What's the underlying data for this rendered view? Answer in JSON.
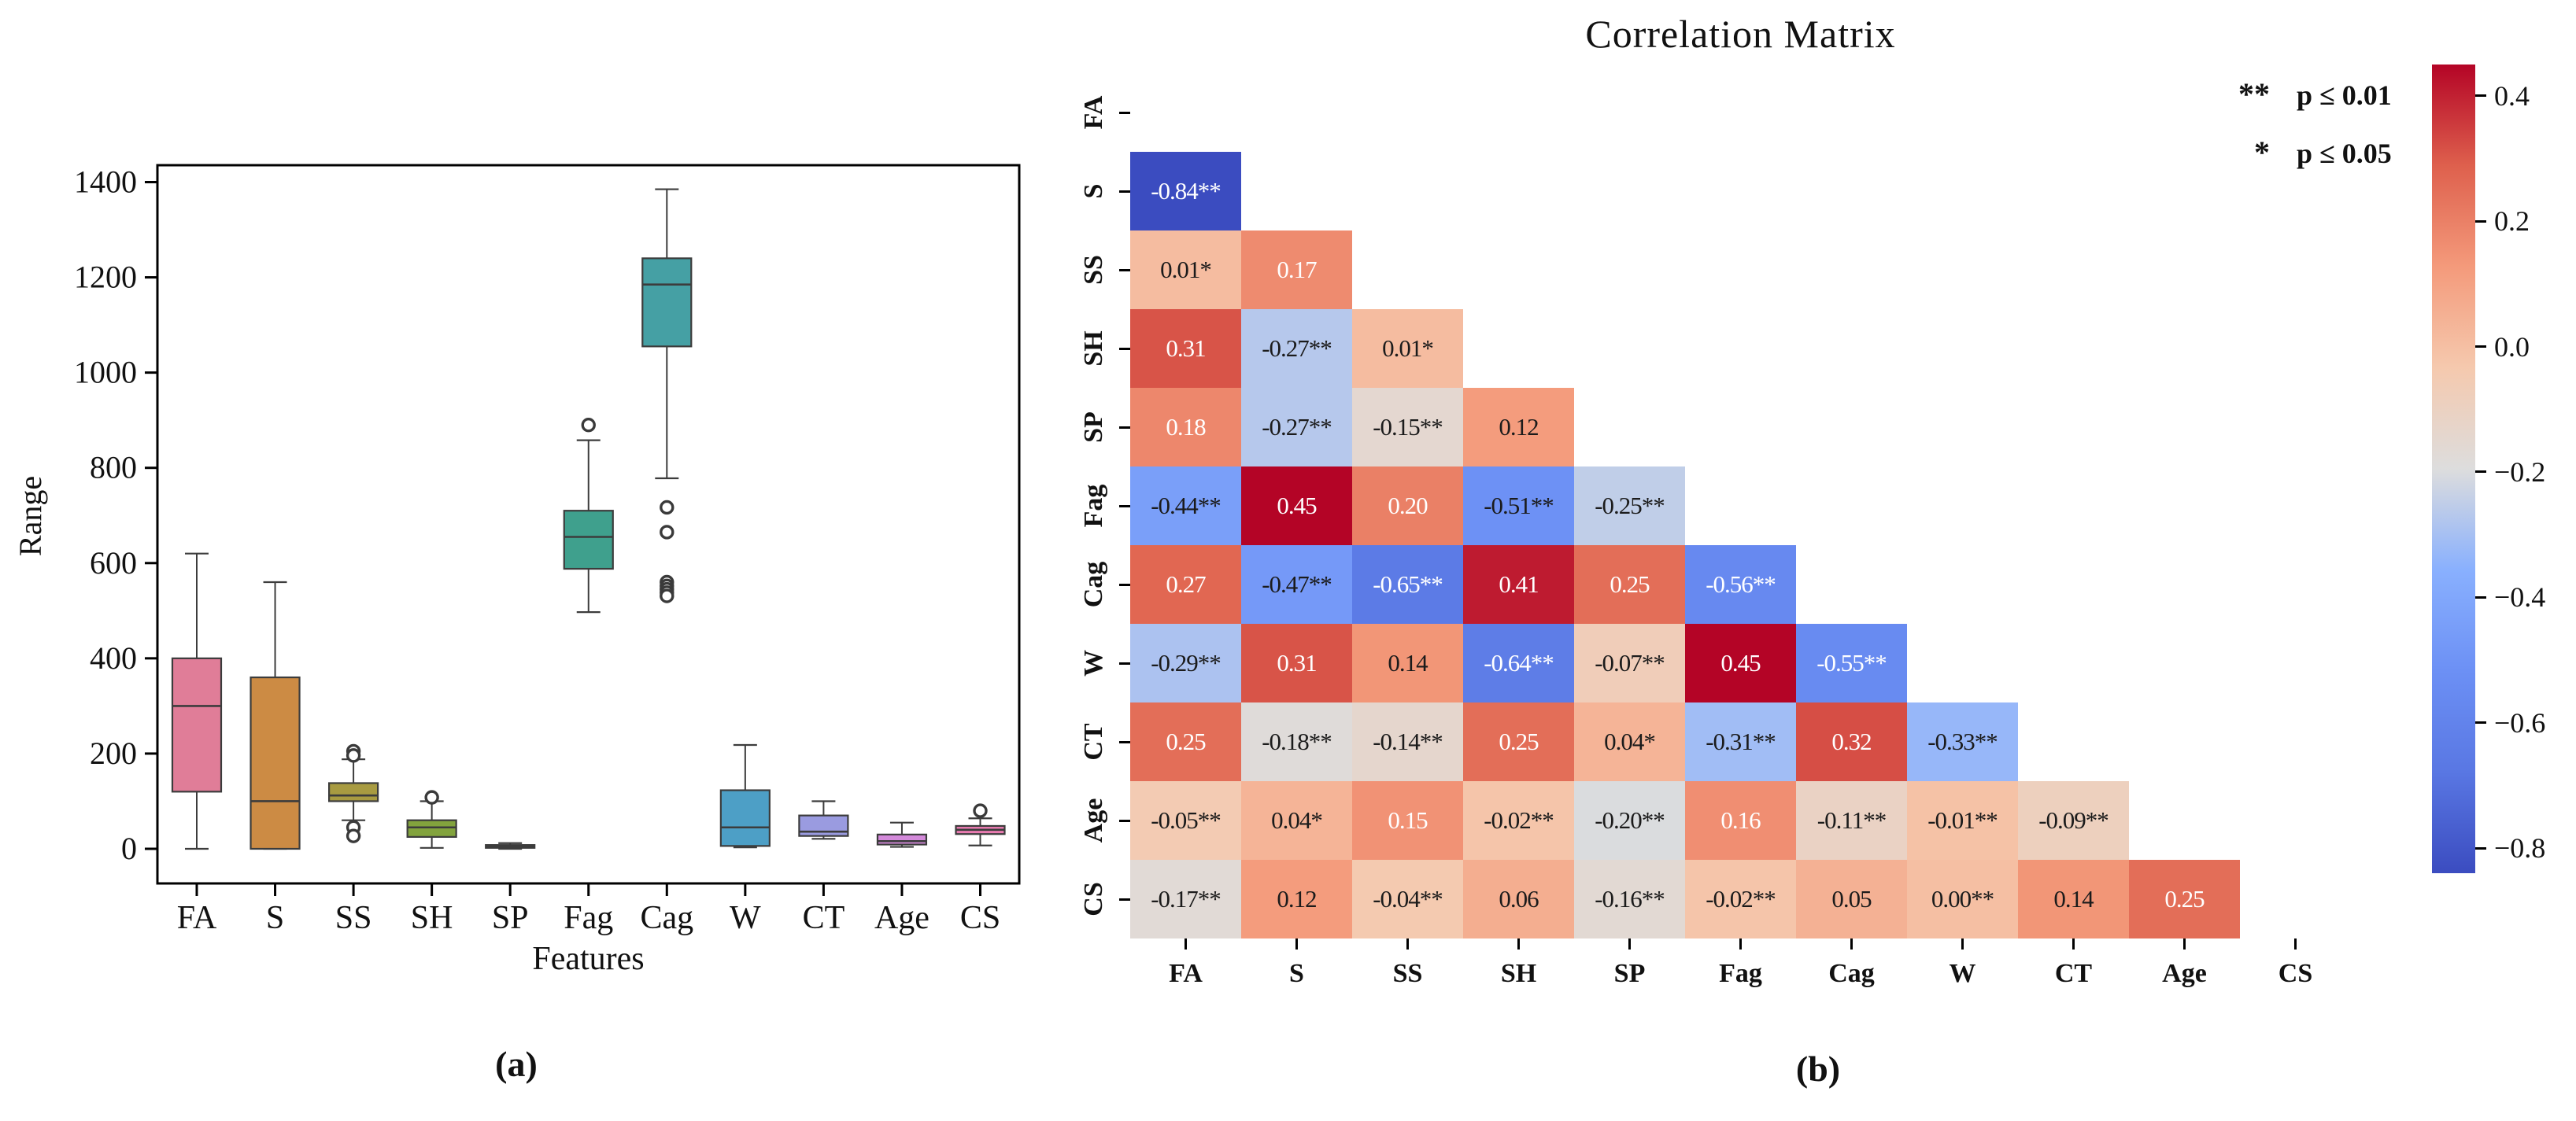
{
  "captions": {
    "a": "(a)",
    "b": "(b)"
  },
  "chart_data": [
    {
      "type": "box",
      "title": "",
      "xlabel": "Features",
      "ylabel": "Range",
      "ylim": [
        -75,
        1455
      ],
      "yticks": [
        0,
        200,
        400,
        600,
        800,
        1000,
        1200,
        1400
      ],
      "categories": [
        "FA",
        "S",
        "SS",
        "SH",
        "SP",
        "Fag",
        "Cag",
        "W",
        "CT",
        "Age",
        "CS"
      ],
      "box_colors": [
        "#E07D98",
        "#CC8B44",
        "#A89B41",
        "#82A33D",
        "#3EA164",
        "#3FA08D",
        "#45A0A4",
        "#4D9FC6",
        "#9A9BE0",
        "#D389DA",
        "#E97BB1"
      ],
      "boxes": [
        {
          "label": "FA",
          "whislo": 0,
          "q1": 120,
          "med": 300,
          "q3": 400,
          "whishi": 620,
          "fliers": []
        },
        {
          "label": "S",
          "whislo": 0,
          "q1": 0,
          "med": 100,
          "q3": 360,
          "whishi": 560,
          "fliers": []
        },
        {
          "label": "SS",
          "whislo": 60,
          "q1": 100,
          "med": 112,
          "q3": 138,
          "whishi": 188,
          "fliers": [
            205,
            196,
            45,
            27
          ]
        },
        {
          "label": "SH",
          "whislo": 2,
          "q1": 25,
          "med": 45,
          "q3": 60,
          "whishi": 100,
          "fliers": [
            108
          ]
        },
        {
          "label": "SP",
          "whislo": 0,
          "q1": 2,
          "med": 5,
          "q3": 8,
          "whishi": 12,
          "fliers": []
        },
        {
          "label": "Fag",
          "whislo": 497,
          "q1": 588,
          "med": 655,
          "q3": 710,
          "whishi": 858,
          "fliers": [
            890
          ]
        },
        {
          "label": "Cag",
          "whislo": 778,
          "q1": 1055,
          "med": 1185,
          "q3": 1240,
          "whishi": 1385,
          "fliers": [
            717,
            665,
            560,
            552,
            545,
            538,
            531
          ]
        },
        {
          "label": "W",
          "whislo": 3,
          "q1": 6,
          "med": 45,
          "q3": 123,
          "whishi": 218,
          "fliers": []
        },
        {
          "label": "CT",
          "whislo": 21,
          "q1": 27,
          "med": 36,
          "q3": 70,
          "whishi": 100,
          "fliers": []
        },
        {
          "label": "Age",
          "whislo": 4,
          "q1": 9,
          "med": 16,
          "q3": 30,
          "whishi": 55,
          "fliers": []
        },
        {
          "label": "CS",
          "whislo": 7,
          "q1": 31,
          "med": 40,
          "q3": 48,
          "whishi": 64,
          "fliers": [
            80
          ]
        }
      ]
    },
    {
      "type": "heatmap",
      "title": "Correlation Matrix",
      "labels": [
        "FA",
        "S",
        "SS",
        "SH",
        "SP",
        "Fag",
        "Cag",
        "W",
        "CT",
        "Age",
        "CS"
      ],
      "vmin": -0.84,
      "vmax": 0.45,
      "colormap_anchors": [
        [
          0.0,
          "#3B4CC0"
        ],
        [
          0.125,
          "#5977E3"
        ],
        [
          0.25,
          "#6C90F5"
        ],
        [
          0.375,
          "#89B0FE"
        ],
        [
          0.5,
          "#DDDDDD"
        ],
        [
          0.625,
          "#F5C9AE"
        ],
        [
          0.75,
          "#F49A7B"
        ],
        [
          0.875,
          "#DE604D"
        ],
        [
          1.0,
          "#B40426"
        ]
      ],
      "rows": [
        {
          "label": "FA",
          "cells": []
        },
        {
          "label": "S",
          "cells": [
            {
              "v": -0.84,
              "text": "-0.84**"
            }
          ]
        },
        {
          "label": "SS",
          "cells": [
            {
              "v": 0.01,
              "text": "0.01*"
            },
            {
              "v": 0.17,
              "text": "0.17"
            }
          ]
        },
        {
          "label": "SH",
          "cells": [
            {
              "v": 0.31,
              "text": "0.31"
            },
            {
              "v": -0.27,
              "text": "-0.27**"
            },
            {
              "v": 0.01,
              "text": "0.01*"
            }
          ]
        },
        {
          "label": "SP",
          "cells": [
            {
              "v": 0.18,
              "text": "0.18"
            },
            {
              "v": -0.27,
              "text": "-0.27**"
            },
            {
              "v": -0.15,
              "text": "-0.15**"
            },
            {
              "v": 0.12,
              "text": "0.12"
            }
          ]
        },
        {
          "label": "Fag",
          "cells": [
            {
              "v": -0.44,
              "text": "-0.44**"
            },
            {
              "v": 0.45,
              "text": "0.45"
            },
            {
              "v": 0.2,
              "text": "0.20"
            },
            {
              "v": -0.51,
              "text": "-0.51**"
            },
            {
              "v": -0.25,
              "text": "-0.25**"
            }
          ]
        },
        {
          "label": "Cag",
          "cells": [
            {
              "v": 0.27,
              "text": "0.27"
            },
            {
              "v": -0.47,
              "text": "-0.47**"
            },
            {
              "v": -0.65,
              "text": "-0.65**"
            },
            {
              "v": 0.41,
              "text": "0.41"
            },
            {
              "v": 0.25,
              "text": "0.25"
            },
            {
              "v": -0.56,
              "text": "-0.56**"
            }
          ]
        },
        {
          "label": "W",
          "cells": [
            {
              "v": -0.29,
              "text": "-0.29**"
            },
            {
              "v": 0.31,
              "text": "0.31"
            },
            {
              "v": 0.14,
              "text": "0.14"
            },
            {
              "v": -0.64,
              "text": "-0.64**"
            },
            {
              "v": -0.07,
              "text": "-0.07**"
            },
            {
              "v": 0.45,
              "text": "0.45"
            },
            {
              "v": -0.55,
              "text": "-0.55**"
            }
          ]
        },
        {
          "label": "CT",
          "cells": [
            {
              "v": 0.25,
              "text": "0.25"
            },
            {
              "v": -0.18,
              "text": "-0.18**"
            },
            {
              "v": -0.14,
              "text": "-0.14**"
            },
            {
              "v": 0.25,
              "text": "0.25"
            },
            {
              "v": 0.04,
              "text": "0.04*"
            },
            {
              "v": -0.31,
              "text": "-0.31**"
            },
            {
              "v": 0.32,
              "text": "0.32"
            },
            {
              "v": -0.33,
              "text": "-0.33**"
            }
          ]
        },
        {
          "label": "Age",
          "cells": [
            {
              "v": -0.05,
              "text": "-0.05**"
            },
            {
              "v": 0.04,
              "text": "0.04*"
            },
            {
              "v": 0.15,
              "text": "0.15"
            },
            {
              "v": -0.02,
              "text": "-0.02**"
            },
            {
              "v": -0.2,
              "text": "-0.20**"
            },
            {
              "v": 0.16,
              "text": "0.16"
            },
            {
              "v": -0.11,
              "text": "-0.11**"
            },
            {
              "v": -0.01,
              "text": "-0.01**"
            },
            {
              "v": -0.09,
              "text": "-0.09**"
            }
          ]
        },
        {
          "label": "CS",
          "cells": [
            {
              "v": -0.17,
              "text": "-0.17**"
            },
            {
              "v": 0.12,
              "text": "0.12"
            },
            {
              "v": -0.04,
              "text": "-0.04**"
            },
            {
              "v": 0.06,
              "text": "0.06"
            },
            {
              "v": -0.16,
              "text": "-0.16**"
            },
            {
              "v": -0.02,
              "text": "-0.02**"
            },
            {
              "v": 0.05,
              "text": "0.05"
            },
            {
              "v": 0.0,
              "text": "0.00**"
            },
            {
              "v": 0.14,
              "text": "0.14"
            },
            {
              "v": 0.25,
              "text": "0.25"
            }
          ]
        }
      ],
      "colorbar_ticks": [
        0.4,
        0.2,
        0.0,
        -0.2,
        -0.4,
        -0.6,
        -0.8
      ],
      "legend": [
        {
          "symbol": "**",
          "label": "p ≤ 0.01"
        },
        {
          "symbol": "*",
          "label": "p ≤ 0.05"
        }
      ],
      "legend_position": "upper right"
    }
  ]
}
